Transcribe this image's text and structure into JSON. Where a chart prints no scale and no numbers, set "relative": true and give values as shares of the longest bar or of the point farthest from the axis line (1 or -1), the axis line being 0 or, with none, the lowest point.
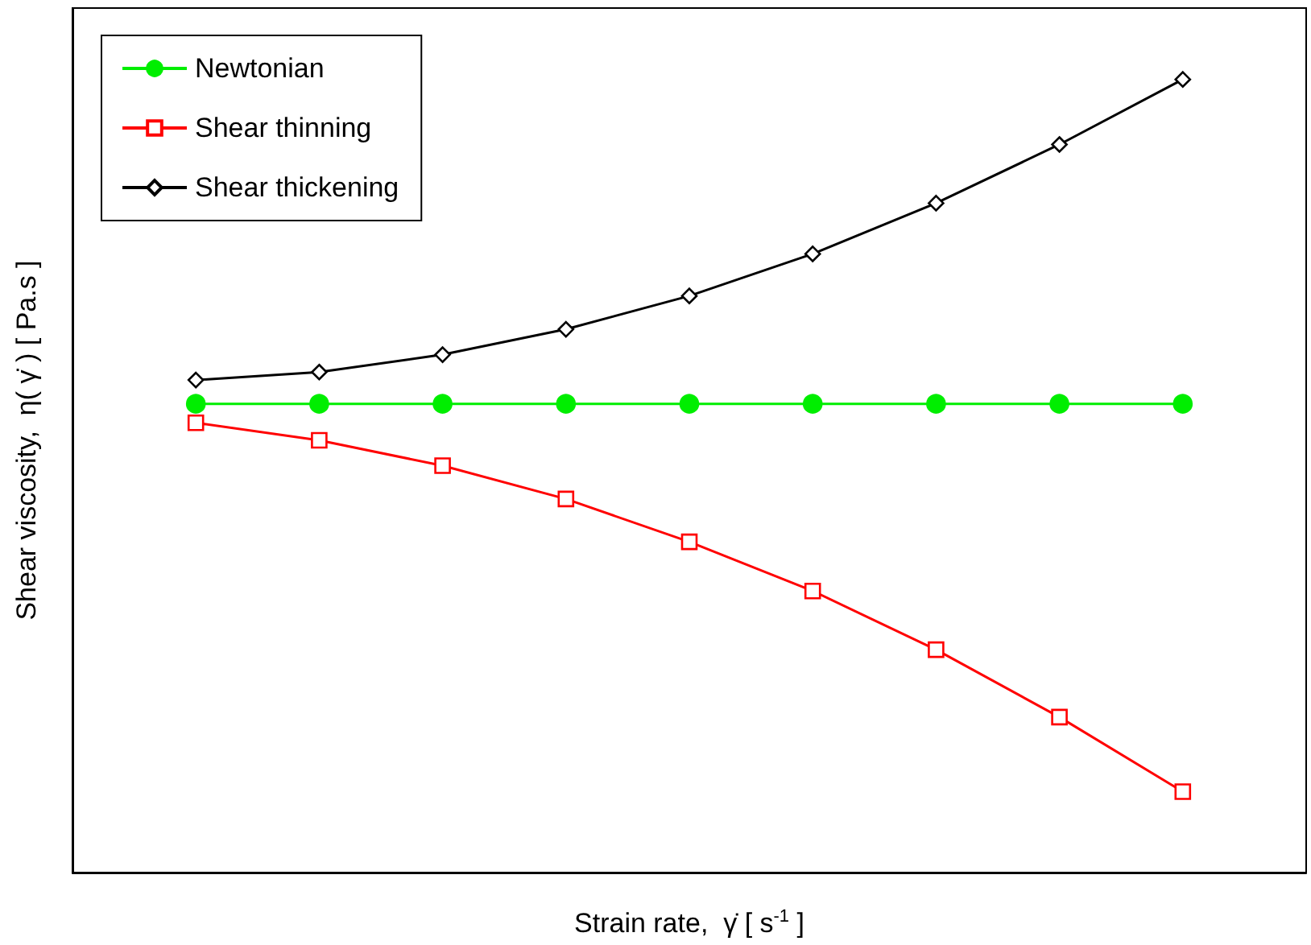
{
  "chart_data": {
    "type": "line",
    "relative": true,
    "xlabel": "Strain rate,  γ̇ [ s$^{-1}$ ]",
    "ylabel": "Shear viscosity,  η( γ̇ ) [ Pa.s ]",
    "categories": [
      null,
      null,
      null,
      null,
      null,
      null,
      null,
      null,
      null
    ],
    "series": [
      {
        "name": "Newtonian",
        "color": "#00ee00",
        "marker": "circle",
        "values": [
          0.591,
          0.591,
          0.591,
          0.591,
          0.591,
          0.591,
          0.591,
          0.591,
          0.591
        ]
      },
      {
        "name": "Shear thinning",
        "color": "#ff0000",
        "marker": "square",
        "values": [
          0.567,
          0.545,
          0.513,
          0.471,
          0.417,
          0.355,
          0.281,
          0.196,
          0.102
        ]
      },
      {
        "name": "Shear thickening",
        "color": "#000000",
        "marker": "diamond",
        "values": [
          0.621,
          0.631,
          0.653,
          0.685,
          0.727,
          0.78,
          0.844,
          0.918,
          1
        ]
      }
    ],
    "legend": "top left",
    "grid": false,
    "line_style": "solid"
  }
}
